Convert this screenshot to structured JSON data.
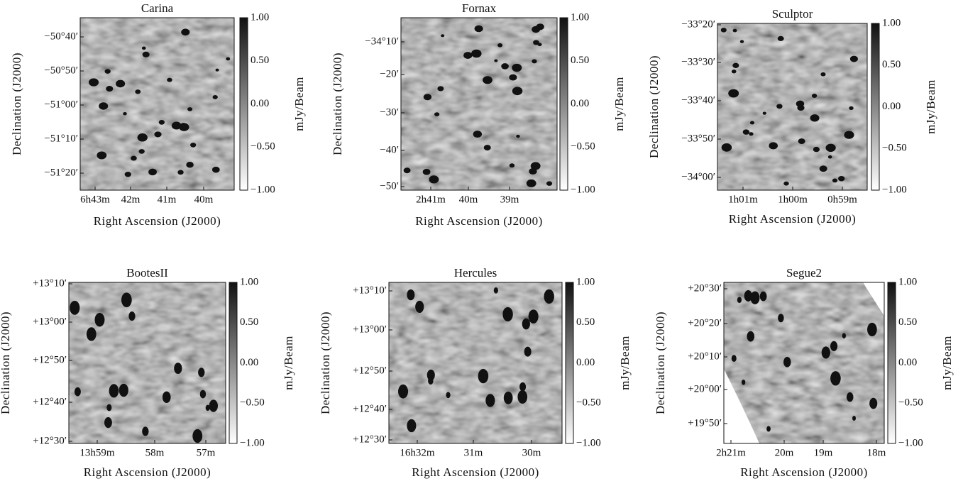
{
  "panels": [
    {
      "title": "Carina",
      "yticks": [
        "−50°40′",
        "−50°50′",
        "−51°00′",
        "−51°10′",
        "−51°20′"
      ],
      "xticks": [
        "6h43m",
        "42m",
        "41m",
        "40m"
      ],
      "xlabel": "Right Ascension (J2000)",
      "ylabel": "Declination (J2000)",
      "cbar_ticks": [
        "1.00",
        "0.50",
        "0.00",
        "−0.50",
        "−1.00"
      ],
      "cbar_label": "mJy/Beam"
    },
    {
      "title": "Fornax",
      "yticks": [
        "−34°10′",
        "−20′",
        "−30′",
        "−40′",
        "−50′"
      ],
      "xticks": [
        "2h41m",
        "40m",
        "39m"
      ],
      "xlabel": "Right Ascension (J2000)",
      "ylabel": "Declination (J2000)",
      "cbar_ticks": [
        "1.00",
        "0.50",
        "0.00",
        "−0.50",
        "−1.00"
      ],
      "cbar_label": "mJy/Beam"
    },
    {
      "title": "Sculptor",
      "yticks": [
        "−33°20′",
        "−33°30′",
        "−33°40′",
        "−33°50′",
        "−34°00′"
      ],
      "xticks": [
        "1h01m",
        "1h00m",
        "0h59m"
      ],
      "xlabel": "Right Ascension (J2000)",
      "ylabel": "Declination (J2000)",
      "cbar_ticks": [
        "1.00",
        "0.50",
        "0.00",
        "−0.50",
        "−1.00"
      ],
      "cbar_label": "mJy/Beam"
    },
    {
      "title": "BootesII",
      "yticks": [
        "+13°10′",
        "+13°00′",
        "+12°50′",
        "+12°40′",
        "+12°30′"
      ],
      "xticks": [
        "13h59m",
        "58m",
        "57m"
      ],
      "xlabel": "Right Ascension (J2000)",
      "ylabel": "Declination (J2000)",
      "cbar_ticks": [
        "1.00",
        "0.50",
        "0.00",
        "−0.50",
        "−1.00"
      ],
      "cbar_label": "mJy/Beam"
    },
    {
      "title": "Hercules",
      "yticks": [
        "+13°10′",
        "+13°00′",
        "+12°50′",
        "+12°40′",
        "+12°30′"
      ],
      "xticks": [
        "16h32m",
        "31m",
        "30m"
      ],
      "xlabel": "Right Ascension (J2000)",
      "ylabel": "Declination (J2000)",
      "cbar_ticks": [
        "1.00",
        "0.50",
        "0.00",
        "−0.50",
        "−1.00"
      ],
      "cbar_label": "mJy/Beam"
    },
    {
      "title": "Segue2",
      "yticks": [
        "+20°30′",
        "+20°20′",
        "+20°10′",
        "+20°00′",
        "+19°50′"
      ],
      "xticks": [
        "2h21m",
        "20m",
        "19m",
        "18m"
      ],
      "xlabel": "Right Ascension (J2000)",
      "ylabel": "Declination (J2000)",
      "cbar_ticks": [
        "1.00",
        "0.50",
        "0.00",
        "−0.50",
        "−1.00"
      ],
      "cbar_label": "mJy/Beam"
    }
  ]
}
